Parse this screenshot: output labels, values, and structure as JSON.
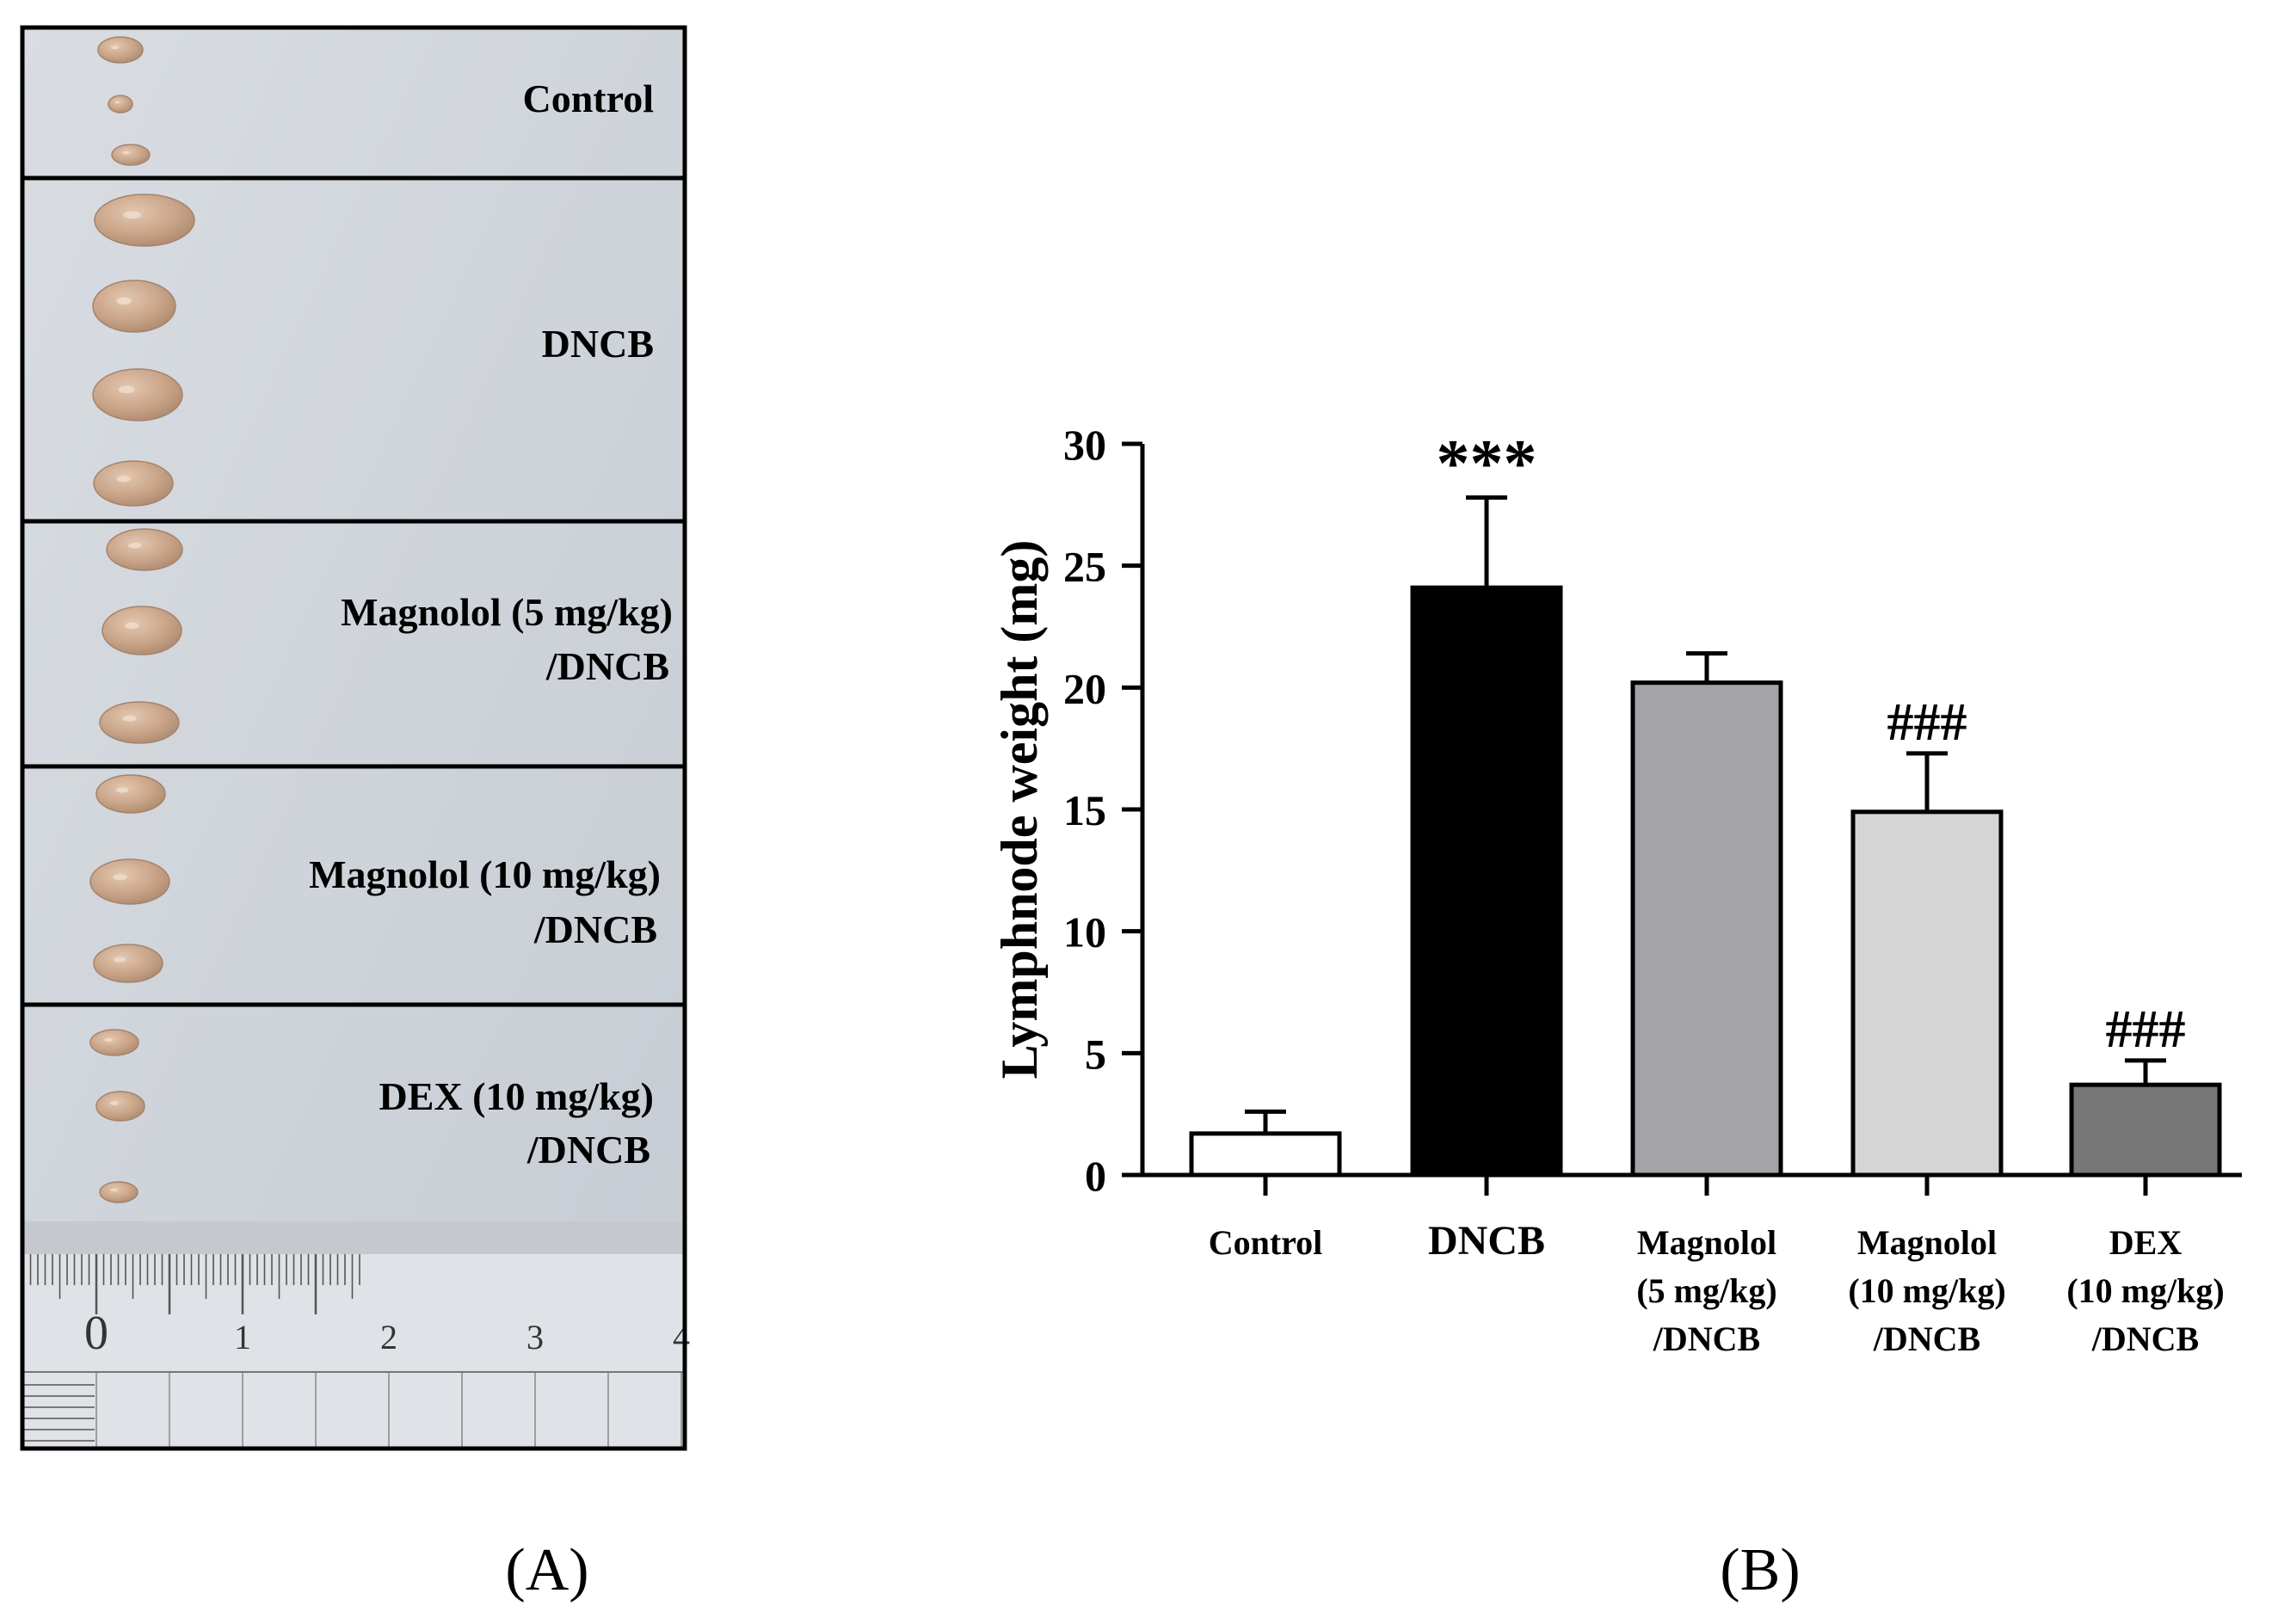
{
  "panel_a": {
    "label": "(A)",
    "groups": [
      {
        "line1": "Control",
        "line2": "",
        "node_count": 3
      },
      {
        "line1": "DNCB",
        "line2": "",
        "node_count": 4
      },
      {
        "line1": "Magnolol (5 mg/kg)",
        "line2": "/DNCB",
        "node_count": 3
      },
      {
        "line1": "Magnolol (10 mg/kg)",
        "line2": "/DNCB",
        "node_count": 3
      },
      {
        "line1": "DEX (10 mg/kg)",
        "line2": "/DNCB",
        "node_count": 3
      }
    ],
    "ruler_numbers": [
      "0",
      "1",
      "2",
      "3",
      "4"
    ]
  },
  "panel_b": {
    "label": "(B)"
  },
  "chart_data": {
    "type": "bar",
    "title": "",
    "xlabel": "",
    "ylabel": "Lymphnode weight (mg)",
    "ylim": [
      0,
      30
    ],
    "yticks": [
      0,
      5,
      10,
      15,
      20,
      25,
      30
    ],
    "categories": [
      [
        "Control"
      ],
      [
        "DNCB"
      ],
      [
        "Magnolol",
        "(5 mg/kg)",
        "/DNCB"
      ],
      [
        "Magnolol",
        "(10 mg/kg)",
        "/DNCB"
      ],
      [
        "DEX",
        "(10 mg/kg)",
        "/DNCB"
      ]
    ],
    "values": [
      1.7,
      24.1,
      20.2,
      14.9,
      3.7
    ],
    "errors": [
      0.9,
      3.7,
      1.2,
      2.4,
      1.0
    ],
    "colors": [
      "#ffffff",
      "#000000",
      "#a4a4a8",
      "#d5d5d5",
      "#777777"
    ],
    "annotations": [
      "",
      "***",
      "",
      "###",
      "###"
    ]
  }
}
